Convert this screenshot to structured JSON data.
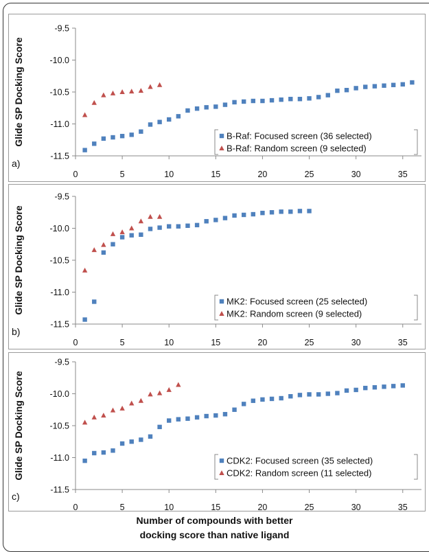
{
  "x_axis_title_line1": "Number of compounds with better",
  "x_axis_title_line2": "docking score than native ligand",
  "chart_data": [
    {
      "type": "scatter",
      "panel_label": "a)",
      "ylabel": "Glide SP Docking Score",
      "xlim": [
        0,
        37
      ],
      "ylim": [
        -11.5,
        -9.5
      ],
      "x_ticks": [
        0,
        5,
        10,
        15,
        20,
        25,
        30,
        35
      ],
      "y_ticks": [
        -11.5,
        -11.0,
        -10.5,
        -10.0,
        -9.5
      ],
      "y_tick_labels": [
        "-11.5",
        "-11.0",
        "-10.5",
        "-10.0",
        "-9.5"
      ],
      "grid": false,
      "legend_position": "bottom-right",
      "series": [
        {
          "name": "B-Raf: Focused screen (36 selected)",
          "marker": "square",
          "color": "#4f81bd",
          "x": [
            1,
            2,
            3,
            4,
            5,
            6,
            7,
            8,
            9,
            10,
            11,
            12,
            13,
            14,
            15,
            16,
            17,
            18,
            19,
            20,
            21,
            22,
            23,
            24,
            25,
            26,
            27,
            28,
            29,
            30,
            31,
            32,
            33,
            34,
            35,
            36
          ],
          "y": [
            -11.41,
            -11.31,
            -11.23,
            -11.21,
            -11.19,
            -11.17,
            -11.12,
            -11.01,
            -10.97,
            -10.93,
            -10.88,
            -10.79,
            -10.76,
            -10.74,
            -10.73,
            -10.7,
            -10.66,
            -10.65,
            -10.64,
            -10.64,
            -10.63,
            -10.62,
            -10.61,
            -10.61,
            -10.6,
            -10.58,
            -10.55,
            -10.48,
            -10.47,
            -10.44,
            -10.42,
            -10.41,
            -10.4,
            -10.39,
            -10.38,
            -10.35
          ]
        },
        {
          "name": "B-Raf: Random screen (9 selected)",
          "marker": "triangle",
          "color": "#c0504d",
          "x": [
            1,
            2,
            3,
            4,
            5,
            6,
            7,
            8,
            9
          ],
          "y": [
            -10.86,
            -10.67,
            -10.55,
            -10.52,
            -10.5,
            -10.49,
            -10.48,
            -10.42,
            -10.39
          ]
        }
      ]
    },
    {
      "type": "scatter",
      "panel_label": "b)",
      "ylabel": "Glide SP Docking Score",
      "xlim": [
        0,
        37
      ],
      "ylim": [
        -11.5,
        -9.5
      ],
      "x_ticks": [
        0,
        5,
        10,
        15,
        20,
        25,
        30,
        35
      ],
      "y_ticks": [
        -11.5,
        -11.0,
        -10.5,
        -10.0,
        -9.5
      ],
      "y_tick_labels": [
        "-11.5",
        "-11.0",
        "-10.5",
        "-10.0",
        "-9.5"
      ],
      "grid": false,
      "legend_position": "bottom-right",
      "series": [
        {
          "name": "MK2: Focused screen (25 selected)",
          "marker": "square",
          "color": "#4f81bd",
          "x": [
            1,
            2,
            3,
            4,
            5,
            6,
            7,
            8,
            9,
            10,
            11,
            12,
            13,
            14,
            15,
            16,
            17,
            18,
            19,
            20,
            21,
            22,
            23,
            24,
            25
          ],
          "y": [
            -11.43,
            -11.15,
            -10.38,
            -10.25,
            -10.14,
            -10.11,
            -10.1,
            -10.01,
            -9.99,
            -9.97,
            -9.97,
            -9.96,
            -9.95,
            -9.89,
            -9.87,
            -9.84,
            -9.8,
            -9.79,
            -9.78,
            -9.76,
            -9.75,
            -9.74,
            -9.74,
            -9.73,
            -9.73
          ]
        },
        {
          "name": "MK2: Random screen (9 selected)",
          "marker": "triangle",
          "color": "#c0504d",
          "x": [
            1,
            2,
            3,
            4,
            5,
            6,
            7,
            8,
            9
          ],
          "y": [
            -10.66,
            -10.34,
            -10.26,
            -10.09,
            -10.06,
            -10.0,
            -9.89,
            -9.82,
            -9.82
          ]
        }
      ]
    },
    {
      "type": "scatter",
      "panel_label": "c)",
      "ylabel": "Glide SP Docking Score",
      "xlim": [
        0,
        37
      ],
      "ylim": [
        -11.5,
        -9.5
      ],
      "x_ticks": [
        0,
        5,
        10,
        15,
        20,
        25,
        30,
        35
      ],
      "y_ticks": [
        -11.5,
        -11.0,
        -10.5,
        -10.0,
        -9.5
      ],
      "y_tick_labels": [
        "-11.5",
        "-11.0",
        "-10.5",
        "-10.0",
        "-9.5"
      ],
      "grid": false,
      "legend_position": "bottom-right",
      "series": [
        {
          "name": "CDK2: Focused screen (35 selected)",
          "marker": "square",
          "color": "#4f81bd",
          "x": [
            1,
            2,
            3,
            4,
            5,
            6,
            7,
            8,
            9,
            10,
            11,
            12,
            13,
            14,
            15,
            16,
            17,
            18,
            19,
            20,
            21,
            22,
            23,
            24,
            25,
            26,
            27,
            28,
            29,
            30,
            31,
            32,
            33,
            34,
            35
          ],
          "y": [
            -11.05,
            -10.93,
            -10.92,
            -10.89,
            -10.78,
            -10.75,
            -10.72,
            -10.67,
            -10.52,
            -10.42,
            -10.4,
            -10.39,
            -10.37,
            -10.35,
            -10.34,
            -10.32,
            -10.25,
            -10.16,
            -10.11,
            -10.09,
            -10.08,
            -10.07,
            -10.04,
            -10.02,
            -10.01,
            -10.01,
            -10.0,
            -9.99,
            -9.95,
            -9.94,
            -9.91,
            -9.9,
            -9.89,
            -9.88,
            -9.87
          ]
        },
        {
          "name": "CDK2: Random screen (11 selected)",
          "marker": "triangle",
          "color": "#c0504d",
          "x": [
            1,
            2,
            3,
            4,
            5,
            6,
            7,
            8,
            9,
            10,
            11
          ],
          "y": [
            -10.45,
            -10.37,
            -10.34,
            -10.26,
            -10.23,
            -10.15,
            -10.11,
            -10.01,
            -9.99,
            -9.94,
            -9.86
          ]
        }
      ]
    }
  ]
}
